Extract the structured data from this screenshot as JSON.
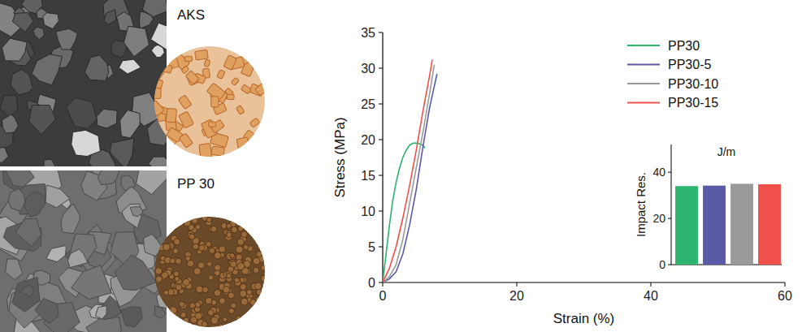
{
  "photo_labels": [
    "AKS",
    "PP 30"
  ],
  "chart_data": [
    {
      "type": "line",
      "x_label": "Strain (%)",
      "y_label": "Stress (MPa)",
      "xlim": [
        0,
        60
      ],
      "xticks": [
        0,
        20,
        40,
        60
      ],
      "ylim": [
        0,
        35
      ],
      "yticks": [
        0,
        5,
        10,
        15,
        20,
        25,
        30,
        35
      ],
      "legend": "upper right",
      "series": [
        {
          "name": "PP30",
          "color": "#2db46e",
          "x": [
            0,
            0.5,
            1,
            1.5,
            2,
            2.5,
            3,
            3.5,
            4,
            4.5,
            5,
            5.5,
            6,
            6.3
          ],
          "values": [
            0,
            4,
            8,
            11.5,
            14,
            16,
            17.5,
            18.5,
            19.2,
            19.5,
            19.5,
            19.4,
            19.2,
            18.8
          ]
        },
        {
          "name": "PP30-5",
          "color": "#5a5aa6",
          "x": [
            0,
            1,
            2,
            3,
            4,
            5,
            6,
            7,
            8.1
          ],
          "values": [
            0,
            0.5,
            1.5,
            4,
            8,
            13,
            19,
            24.5,
            29.2
          ]
        },
        {
          "name": "PP30-10",
          "color": "#9a9a9a",
          "x": [
            0,
            1,
            2,
            3,
            4,
            5,
            6,
            7,
            7.7
          ],
          "values": [
            0,
            0.8,
            2.5,
            6,
            11,
            16,
            21,
            26.5,
            30.5
          ]
        },
        {
          "name": "PP30-15",
          "color": "#f0504a",
          "x": [
            0,
            1,
            2,
            3,
            4,
            5,
            6,
            7,
            7.4
          ],
          "values": [
            0,
            2,
            5,
            9,
            13.5,
            18.5,
            24,
            29,
            31.2
          ]
        }
      ]
    },
    {
      "type": "bar",
      "title": "J/m",
      "y_label": "Impact Res.",
      "categories": [
        null,
        null,
        null,
        null
      ],
      "values": [
        34,
        34.2,
        35,
        34.8
      ],
      "colors": [
        "#2db46e",
        "#5a5aa6",
        "#9a9a9a",
        "#f0504a"
      ],
      "ylim": [
        0,
        52
      ],
      "yticks": [
        0,
        20,
        40
      ]
    }
  ]
}
